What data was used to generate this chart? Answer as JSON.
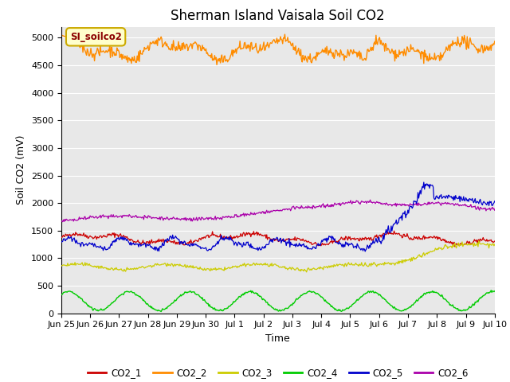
{
  "title": "Sherman Island Vaisala Soil CO2",
  "ylabel": "Soil CO2 (mV)",
  "xlabel": "Time",
  "annotation_label": "SI_soilco2",
  "plot_bg_color": "#e8e8e8",
  "ylim": [
    0,
    5200
  ],
  "yticks": [
    0,
    500,
    1000,
    1500,
    2000,
    2500,
    3000,
    3500,
    4000,
    4500,
    5000
  ],
  "xtick_labels": [
    "Jun 25",
    "Jun 26",
    "Jun 27",
    "Jun 28",
    "Jun 29",
    "Jun 30",
    "Jul 1",
    "Jul 2",
    "Jul 3",
    "Jul 4",
    "Jul 5",
    "Jul 6",
    "Jul 7",
    "Jul 8",
    "Jul 9",
    "Jul 10"
  ],
  "series_colors": {
    "CO2_1": "#cc0000",
    "CO2_2": "#ff8c00",
    "CO2_3": "#cccc00",
    "CO2_4": "#00cc00",
    "CO2_5": "#0000cc",
    "CO2_6": "#aa00aa"
  },
  "legend_colors": [
    "#cc0000",
    "#ff8c00",
    "#cccc00",
    "#00cc00",
    "#0000cc",
    "#aa00aa"
  ],
  "legend_labels": [
    "CO2_1",
    "CO2_2",
    "CO2_3",
    "CO2_4",
    "CO2_5",
    "CO2_6"
  ],
  "title_fontsize": 12,
  "axis_label_fontsize": 9,
  "tick_fontsize": 8
}
